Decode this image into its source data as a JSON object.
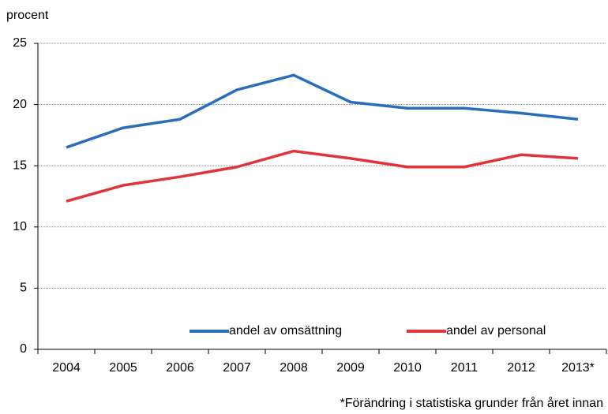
{
  "chart_data": {
    "type": "line",
    "y_label": "procent",
    "footnote": "*Förändring  i statistiska grunder från  året innan",
    "categories": [
      "2004",
      "2005",
      "2006",
      "2007",
      "2008",
      "2009",
      "2010",
      "2011",
      "2012",
      "2013*"
    ],
    "series": [
      {
        "name": "andel av omsättning",
        "color": "#2a6ebb",
        "values": [
          16.5,
          18.1,
          18.8,
          21.2,
          22.4,
          20.2,
          19.7,
          19.7,
          19.3,
          18.8
        ]
      },
      {
        "name": "andel av personal",
        "color": "#e0343a",
        "values": [
          12.1,
          13.4,
          14.1,
          14.9,
          16.2,
          15.6,
          14.9,
          14.9,
          15.9,
          15.6
        ]
      }
    ],
    "ylim": [
      0,
      25
    ],
    "yticks": [
      0,
      5,
      10,
      15,
      20,
      25
    ],
    "grid": true,
    "legend": "bottom"
  }
}
